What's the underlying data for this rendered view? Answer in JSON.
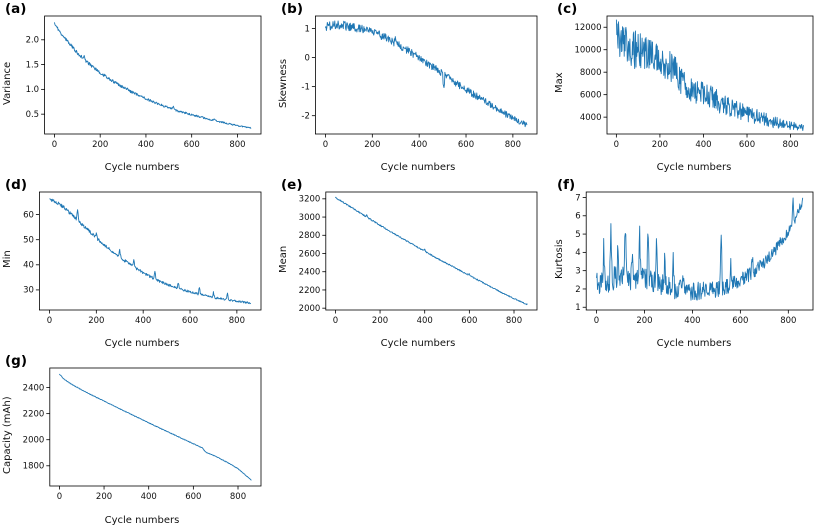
{
  "figure": {
    "line_color": "#1f77b4",
    "axis_color": "#000000",
    "background": "#ffffff"
  },
  "chart_data": [
    {
      "id": "a",
      "panel_label": "(a)",
      "type": "line",
      "title": "",
      "xlabel": "Cycle numbers",
      "ylabel": "Variance",
      "x_max": 860,
      "xlim": [
        -43,
        903
      ],
      "ylim": [
        0.1,
        2.48
      ],
      "xticks": [
        {
          "v": 0,
          "label": "0"
        },
        {
          "v": 200,
          "label": "200"
        },
        {
          "v": 400,
          "label": "400"
        },
        {
          "v": 600,
          "label": "600"
        },
        {
          "v": 800,
          "label": "800"
        }
      ],
      "yticks": [
        {
          "v": 0.5,
          "label": "0.5"
        },
        {
          "v": 1.0,
          "label": "1.0"
        },
        {
          "v": 1.5,
          "label": "1.5"
        },
        {
          "v": 2.0,
          "label": "2.0"
        }
      ],
      "anchors": [
        [
          0,
          2.33
        ],
        [
          30,
          2.12
        ],
        [
          60,
          1.95
        ],
        [
          100,
          1.74
        ],
        [
          150,
          1.52
        ],
        [
          200,
          1.34
        ],
        [
          250,
          1.18
        ],
        [
          300,
          1.04
        ],
        [
          350,
          0.92
        ],
        [
          400,
          0.81
        ],
        [
          450,
          0.71
        ],
        [
          500,
          0.63
        ],
        [
          550,
          0.55
        ],
        [
          600,
          0.49
        ],
        [
          650,
          0.43
        ],
        [
          700,
          0.37
        ],
        [
          750,
          0.32
        ],
        [
          800,
          0.27
        ],
        [
          860,
          0.22
        ]
      ],
      "noise_start": 0.035,
      "noise_end": 0.012,
      "spikes": [
        [
          130,
          0.07
        ],
        [
          320,
          0.05
        ],
        [
          520,
          0.05
        ],
        [
          700,
          0.04
        ]
      ],
      "n_points": 430
    },
    {
      "id": "b",
      "panel_label": "(b)",
      "type": "line",
      "title": "",
      "xlabel": "Cycle numbers",
      "ylabel": "Skewness",
      "x_max": 860,
      "xlim": [
        -43,
        903
      ],
      "ylim": [
        -2.63,
        1.43
      ],
      "xticks": [
        {
          "v": 0,
          "label": "0"
        },
        {
          "v": 200,
          "label": "200"
        },
        {
          "v": 400,
          "label": "400"
        },
        {
          "v": 600,
          "label": "600"
        },
        {
          "v": 800,
          "label": "800"
        }
      ],
      "yticks": [
        {
          "v": -2,
          "label": "-2"
        },
        {
          "v": -1,
          "label": "-1"
        },
        {
          "v": 0,
          "label": "0"
        },
        {
          "v": 1,
          "label": "1"
        }
      ],
      "anchors": [
        [
          0,
          1.05
        ],
        [
          50,
          1.12
        ],
        [
          100,
          1.08
        ],
        [
          150,
          1.0
        ],
        [
          200,
          0.92
        ],
        [
          250,
          0.72
        ],
        [
          300,
          0.5
        ],
        [
          350,
          0.25
        ],
        [
          400,
          0.0
        ],
        [
          450,
          -0.28
        ],
        [
          500,
          -0.55
        ],
        [
          550,
          -0.85
        ],
        [
          600,
          -1.1
        ],
        [
          650,
          -1.35
        ],
        [
          700,
          -1.6
        ],
        [
          750,
          -1.85
        ],
        [
          800,
          -2.1
        ],
        [
          830,
          -2.2
        ],
        [
          860,
          -2.35
        ]
      ],
      "noise_start": 0.16,
      "noise_end": 0.1,
      "spikes": [
        [
          300,
          0.25
        ],
        [
          505,
          -0.6
        ]
      ],
      "n_points": 430
    },
    {
      "id": "c",
      "panel_label": "(c)",
      "type": "line",
      "title": "",
      "xlabel": "Cycle numbers",
      "ylabel": "Max",
      "x_max": 860,
      "xlim": [
        -43,
        903
      ],
      "ylim": [
        2500,
        13000
      ],
      "xticks": [
        {
          "v": 0,
          "label": "0"
        },
        {
          "v": 200,
          "label": "200"
        },
        {
          "v": 400,
          "label": "400"
        },
        {
          "v": 600,
          "label": "600"
        },
        {
          "v": 800,
          "label": "800"
        }
      ],
      "yticks": [
        {
          "v": 4000,
          "label": "4000"
        },
        {
          "v": 6000,
          "label": "6000"
        },
        {
          "v": 8000,
          "label": "8000"
        },
        {
          "v": 10000,
          "label": "10000"
        },
        {
          "v": 12000,
          "label": "12000"
        }
      ],
      "anchors": [
        [
          0,
          10800
        ],
        [
          50,
          10300
        ],
        [
          100,
          9900
        ],
        [
          150,
          9600
        ],
        [
          200,
          9300
        ],
        [
          250,
          8500
        ],
        [
          300,
          7300
        ],
        [
          350,
          6500
        ],
        [
          400,
          6000
        ],
        [
          450,
          5600
        ],
        [
          500,
          5000
        ],
        [
          550,
          4600
        ],
        [
          600,
          4300
        ],
        [
          650,
          4000
        ],
        [
          700,
          3700
        ],
        [
          750,
          3400
        ],
        [
          800,
          3250
        ],
        [
          860,
          3050
        ]
      ],
      "noise_start": 1900,
      "noise_end": 260,
      "spikes": [],
      "n_points": 430
    },
    {
      "id": "d",
      "panel_label": "(d)",
      "type": "line",
      "title": "",
      "xlabel": "Cycle numbers",
      "ylabel": "Min",
      "x_max": 860,
      "xlim": [
        -43,
        903
      ],
      "ylim": [
        22,
        69
      ],
      "xticks": [
        {
          "v": 0,
          "label": "0"
        },
        {
          "v": 200,
          "label": "200"
        },
        {
          "v": 400,
          "label": "400"
        },
        {
          "v": 600,
          "label": "600"
        },
        {
          "v": 800,
          "label": "800"
        }
      ],
      "yticks": [
        {
          "v": 30,
          "label": "30"
        },
        {
          "v": 40,
          "label": "40"
        },
        {
          "v": 50,
          "label": "50"
        },
        {
          "v": 60,
          "label": "60"
        }
      ],
      "anchors": [
        [
          0,
          66
        ],
        [
          30,
          65
        ],
        [
          60,
          63
        ],
        [
          100,
          59.5
        ],
        [
          140,
          56
        ],
        [
          180,
          52.5
        ],
        [
          220,
          49
        ],
        [
          260,
          46
        ],
        [
          300,
          43
        ],
        [
          350,
          39.8
        ],
        [
          400,
          36.8
        ],
        [
          450,
          34.3
        ],
        [
          500,
          32.2
        ],
        [
          550,
          30.5
        ],
        [
          600,
          29.2
        ],
        [
          650,
          28
        ],
        [
          700,
          27
        ],
        [
          750,
          26.2
        ],
        [
          800,
          25.5
        ],
        [
          860,
          24.8
        ]
      ],
      "noise_start": 0.7,
      "noise_end": 0.35,
      "spikes": [
        [
          120,
          4
        ],
        [
          200,
          2
        ],
        [
          300,
          3
        ],
        [
          360,
          2.5
        ],
        [
          450,
          3
        ],
        [
          550,
          2.5
        ],
        [
          640,
          3
        ],
        [
          700,
          2
        ],
        [
          760,
          2.5
        ]
      ],
      "n_points": 430
    },
    {
      "id": "e",
      "panel_label": "(e)",
      "type": "line",
      "title": "",
      "xlabel": "Cycle numbers",
      "ylabel": "Mean",
      "x_max": 860,
      "xlim": [
        -43,
        903
      ],
      "ylim": [
        1980,
        3275
      ],
      "xticks": [
        {
          "v": 0,
          "label": "0"
        },
        {
          "v": 200,
          "label": "200"
        },
        {
          "v": 400,
          "label": "400"
        },
        {
          "v": 600,
          "label": "600"
        },
        {
          "v": 800,
          "label": "800"
        }
      ],
      "yticks": [
        {
          "v": 2000,
          "label": "2000"
        },
        {
          "v": 2200,
          "label": "2200"
        },
        {
          "v": 2400,
          "label": "2400"
        },
        {
          "v": 2600,
          "label": "2600"
        },
        {
          "v": 2800,
          "label": "2800"
        },
        {
          "v": 3000,
          "label": "3000"
        },
        {
          "v": 3200,
          "label": "3200"
        }
      ],
      "anchors": [
        [
          0,
          3215
        ],
        [
          50,
          3140
        ],
        [
          100,
          3060
        ],
        [
          150,
          2985
        ],
        [
          200,
          2910
        ],
        [
          250,
          2835
        ],
        [
          300,
          2765
        ],
        [
          350,
          2695
        ],
        [
          400,
          2625
        ],
        [
          450,
          2555
        ],
        [
          500,
          2490
        ],
        [
          550,
          2425
        ],
        [
          600,
          2360
        ],
        [
          650,
          2295
        ],
        [
          700,
          2230
        ],
        [
          750,
          2165
        ],
        [
          800,
          2105
        ],
        [
          860,
          2040
        ]
      ],
      "noise_start": 8,
      "noise_end": 6,
      "spikes": [
        [
          140,
          25
        ],
        [
          400,
          18
        ],
        [
          600,
          12
        ]
      ],
      "n_points": 430
    },
    {
      "id": "f",
      "panel_label": "(f)",
      "type": "line",
      "title": "",
      "xlabel": "Cycle numbers",
      "ylabel": "Kurtosis",
      "x_max": 860,
      "xlim": [
        -43,
        903
      ],
      "ylim": [
        0.85,
        7.3
      ],
      "xticks": [
        {
          "v": 0,
          "label": "0"
        },
        {
          "v": 200,
          "label": "200"
        },
        {
          "v": 400,
          "label": "400"
        },
        {
          "v": 600,
          "label": "600"
        },
        {
          "v": 800,
          "label": "800"
        }
      ],
      "yticks": [
        {
          "v": 1,
          "label": "1"
        },
        {
          "v": 2,
          "label": "2"
        },
        {
          "v": 3,
          "label": "3"
        },
        {
          "v": 4,
          "label": "4"
        },
        {
          "v": 5,
          "label": "5"
        },
        {
          "v": 6,
          "label": "6"
        },
        {
          "v": 7,
          "label": "7"
        }
      ],
      "anchors": [
        [
          0,
          2.2
        ],
        [
          50,
          2.5
        ],
        [
          100,
          2.6
        ],
        [
          150,
          2.6
        ],
        [
          200,
          2.5
        ],
        [
          250,
          2.3
        ],
        [
          300,
          2.1
        ],
        [
          350,
          1.95
        ],
        [
          400,
          1.85
        ],
        [
          450,
          1.9
        ],
        [
          500,
          2.0
        ],
        [
          550,
          2.2
        ],
        [
          600,
          2.5
        ],
        [
          650,
          2.9
        ],
        [
          700,
          3.4
        ],
        [
          750,
          4.2
        ],
        [
          800,
          5.2
        ],
        [
          830,
          5.9
        ],
        [
          860,
          6.8
        ]
      ],
      "noise_start": 0.75,
      "noise_end": 0.25,
      "spikes": [
        [
          30,
          2.2
        ],
        [
          60,
          2.8
        ],
        [
          90,
          2.0
        ],
        [
          120,
          3.1
        ],
        [
          150,
          1.8
        ],
        [
          180,
          2.6
        ],
        [
          215,
          2.9
        ],
        [
          250,
          2.2
        ],
        [
          285,
          1.6
        ],
        [
          320,
          1.4
        ],
        [
          360,
          1.2
        ],
        [
          520,
          3.3
        ],
        [
          560,
          1.0
        ],
        [
          650,
          0.8
        ],
        [
          820,
          1.1
        ]
      ],
      "n_points": 430
    },
    {
      "id": "g",
      "panel_label": "(g)",
      "type": "line",
      "title": "",
      "xlabel": "Cycle numbers",
      "ylabel": "Capacity (mAh)",
      "x_max": 860,
      "xlim": [
        -43,
        903
      ],
      "ylim": [
        1645,
        2550
      ],
      "xticks": [
        {
          "v": 0,
          "label": "0"
        },
        {
          "v": 200,
          "label": "200"
        },
        {
          "v": 400,
          "label": "400"
        },
        {
          "v": 600,
          "label": "600"
        },
        {
          "v": 800,
          "label": "800"
        }
      ],
      "yticks": [
        {
          "v": 1800,
          "label": "1800"
        },
        {
          "v": 2000,
          "label": "2000"
        },
        {
          "v": 2200,
          "label": "2200"
        },
        {
          "v": 2400,
          "label": "2400"
        }
      ],
      "anchors": [
        [
          0,
          2505
        ],
        [
          20,
          2465
        ],
        [
          50,
          2430
        ],
        [
          100,
          2382
        ],
        [
          150,
          2338
        ],
        [
          200,
          2296
        ],
        [
          250,
          2254
        ],
        [
          300,
          2212
        ],
        [
          350,
          2171
        ],
        [
          400,
          2130
        ],
        [
          450,
          2089
        ],
        [
          500,
          2049
        ],
        [
          550,
          2009
        ],
        [
          600,
          1969
        ],
        [
          640,
          1938
        ],
        [
          655,
          1905
        ],
        [
          700,
          1872
        ],
        [
          750,
          1828
        ],
        [
          800,
          1778
        ],
        [
          860,
          1690
        ]
      ],
      "noise_start": 2.5,
      "noise_end": 2.5,
      "spikes": [],
      "n_points": 430
    }
  ]
}
